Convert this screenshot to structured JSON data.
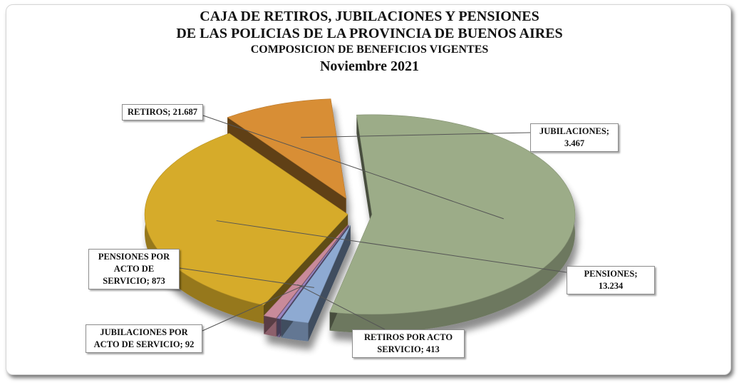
{
  "title": {
    "line1": "CAJA DE RETIROS, JUBILACIONES Y PENSIONES",
    "line2": "DE LAS POLICIAS DE LA PROVINCIA DE BUENOS AIRES",
    "line3": "COMPOSICION  DE BENEFICIOS VIGENTES",
    "line4": "Noviembre 2021"
  },
  "chart_data": {
    "type": "pie",
    "title": "CAJA DE RETIROS, JUBILACIONES Y PENSIONES DE LAS POLICIAS DE LA PROVINCIA DE BUENOS AIRES - COMPOSICION DE BENEFICIOS VIGENTES - Noviembre 2021",
    "legend": "none",
    "slices": [
      {
        "name": "RETIROS",
        "value": 21687,
        "label": "RETIROS; 21.687",
        "color": "#9cac88"
      },
      {
        "name": "JUBILACIONES",
        "value": 3467,
        "label": "JUBILACIONES; 3.467",
        "color": "#d88e36"
      },
      {
        "name": "PENSIONES",
        "value": 13234,
        "label": "PENSIONES; 13.234",
        "color": "#d6ab2a"
      },
      {
        "name": "RETIROS POR ACTO SERVICIO",
        "value": 413,
        "label": "RETIROS POR ACTO\nSERVICIO; 413",
        "color": "#c98a9a"
      },
      {
        "name": "JUBILACIONES POR ACTO DE SERVICIO",
        "value": 92,
        "label": "JUBILACIONES POR\nACTO DE SERVICIO;  92",
        "color": "#9a86c2"
      },
      {
        "name": "PENSIONES POR ACTO DE SERVICIO",
        "value": 873,
        "label": "PENSIONES POR\nACTO DE\nSERVICIO;  873",
        "color": "#8eaad2"
      }
    ]
  }
}
